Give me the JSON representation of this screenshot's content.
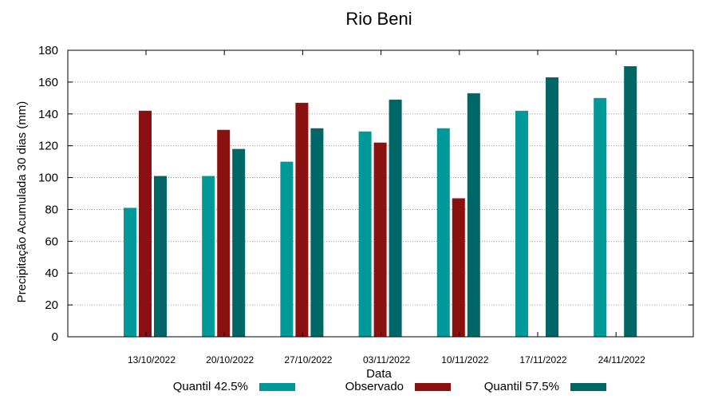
{
  "chart_data": {
    "type": "bar",
    "title": "Rio Beni",
    "xlabel": "Data",
    "ylabel": "Precipitação Acumulada 30 dias (mm)",
    "ylim": [
      0,
      180
    ],
    "yticks": [
      0,
      20,
      40,
      60,
      80,
      100,
      120,
      140,
      160,
      180
    ],
    "grid": true,
    "legend_position": "bottom",
    "categories": [
      "13/10/2022",
      "20/10/2022",
      "27/10/2022",
      "03/11/2022",
      "10/11/2022",
      "17/11/2022",
      "24/11/2022"
    ],
    "series": [
      {
        "name": "Quantil 42.5%",
        "color": "#009999",
        "values": [
          81,
          101,
          110,
          129,
          131,
          142,
          150
        ]
      },
      {
        "name": "Observado",
        "color": "#8b1111",
        "values": [
          142,
          130,
          147,
          122,
          87,
          null,
          null
        ]
      },
      {
        "name": "Quantil 57.5%",
        "color": "#006666",
        "values": [
          101,
          118,
          131,
          149,
          153,
          163,
          170
        ]
      }
    ]
  }
}
